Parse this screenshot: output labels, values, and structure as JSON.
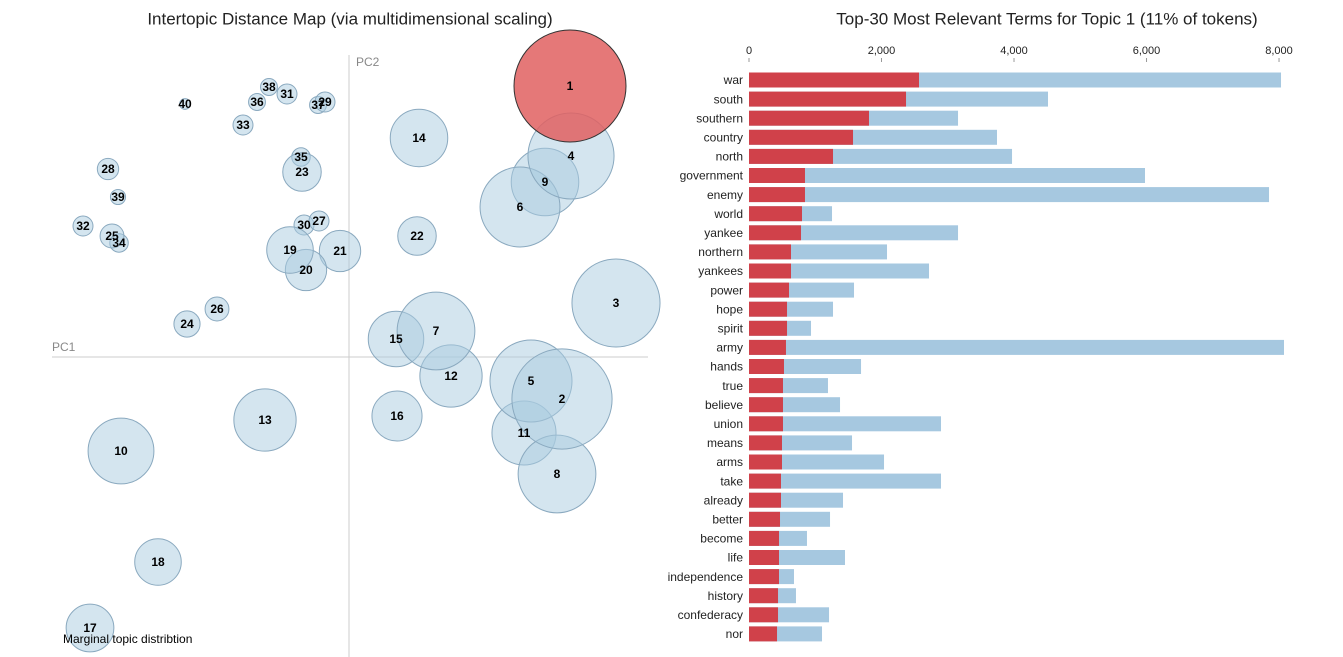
{
  "chart_data": [
    {
      "type": "scatter",
      "title": "Intertopic Distance Map (via multidimensional scaling)",
      "x_label": "PC1",
      "y_label": "PC2",
      "annotation": "Marginal topic distribtion",
      "categories": [
        "1",
        "2",
        "3",
        "4",
        "5",
        "6",
        "7",
        "8",
        "9",
        "10",
        "11",
        "12",
        "13",
        "14",
        "15",
        "16",
        "17",
        "18",
        "19",
        "20",
        "21",
        "22",
        "23",
        "24",
        "25",
        "26",
        "27",
        "28",
        "29",
        "30",
        "31",
        "32",
        "33",
        "34",
        "35",
        "36",
        "37",
        "38",
        "39",
        "40"
      ],
      "x": [
        0.221,
        0.213,
        0.267,
        0.222,
        0.182,
        0.171,
        0.087,
        0.208,
        0.196,
        -0.228,
        0.175,
        0.102,
        -0.084,
        0.07,
        0.047,
        0.048,
        -0.259,
        -0.191,
        -0.059,
        -0.043,
        -0.009,
        0.068,
        -0.047,
        -0.162,
        -0.237,
        -0.132,
        -0.03,
        -0.241,
        -0.024,
        -0.045,
        -0.062,
        -0.266,
        -0.106,
        -0.23,
        -0.048,
        -0.092,
        -0.031,
        -0.08,
        -0.231,
        -0.164
      ],
      "y": [
        0.271,
        -0.042,
        0.054,
        0.201,
        -0.024,
        0.15,
        0.026,
        -0.117,
        0.175,
        -0.094,
        -0.076,
        -0.019,
        -0.063,
        0.219,
        0.018,
        -0.059,
        -0.271,
        -0.205,
        0.107,
        0.087,
        0.106,
        0.121,
        0.185,
        0.033,
        0.121,
        0.048,
        0.136,
        0.188,
        0.255,
        0.132,
        0.263,
        0.131,
        0.232,
        0.114,
        0.2,
        0.255,
        0.252,
        0.27,
        0.16,
        0.253
      ],
      "sizes": [
        11,
        8.8,
        6.8,
        6.5,
        5.9,
        5.6,
        5.3,
        5.3,
        4.0,
        3.8,
        3.6,
        3.4,
        3.4,
        2.9,
        2.7,
        2.2,
        2.0,
        1.9,
        1.9,
        1.5,
        1.5,
        1.3,
        1.3,
        0.6,
        0.5,
        0.5,
        0.35,
        0.4,
        0.35,
        0.35,
        0.35,
        0.35,
        0.35,
        0.3,
        0.3,
        0.25,
        0.25,
        0.25,
        0.2,
        0.1
      ],
      "color": "#a9cbe0",
      "highlight_color": "#e06060",
      "highlighted": "1",
      "xlim": [
        -0.3,
        0.3
      ],
      "ylim": [
        -0.3,
        0.33
      ]
    },
    {
      "type": "hbar",
      "title": "Top-30 Most Relevant Terms for Topic 1 (11% of tokens)",
      "categories": [
        "war",
        "south",
        "southern",
        "country",
        "north",
        "government",
        "enemy",
        "world",
        "yankee",
        "northern",
        "yankees",
        "power",
        "hope",
        "spirit",
        "army",
        "hands",
        "true",
        "believe",
        "union",
        "means",
        "arms",
        "take",
        "already",
        "better",
        "become",
        "life",
        "independence",
        "history",
        "confederacy",
        "nor"
      ],
      "series": [
        {
          "color": "#a6c8e0",
          "values": [
            8030,
            4513,
            3155,
            3743,
            3970,
            5977,
            7849,
            1253,
            3155,
            2083,
            2717,
            1585,
            1268,
            936,
            8075,
            1691,
            1192,
            1374,
            2898,
            1555,
            2038,
            2898,
            1419,
            1223,
            875,
            1449,
            679,
            709,
            1208,
            1102
          ]
        },
        {
          "color": "#d0414a",
          "values": [
            2566,
            2370,
            1811,
            1570,
            1268,
            845,
            845,
            800,
            785,
            634,
            634,
            604,
            574,
            574,
            558,
            528,
            513,
            513,
            513,
            498,
            498,
            483,
            483,
            468,
            453,
            453,
            453,
            438,
            438,
            423
          ]
        }
      ],
      "xlim": [
        0,
        8075
      ],
      "xticks": [
        0,
        {
          "value": 2000,
          "label": "2,000"
        },
        {
          "value": 4000,
          "label": "4,000"
        },
        {
          "value": 6000,
          "label": "6,000"
        },
        {
          "value": 8000,
          "label": "8,000"
        }
      ]
    }
  ]
}
